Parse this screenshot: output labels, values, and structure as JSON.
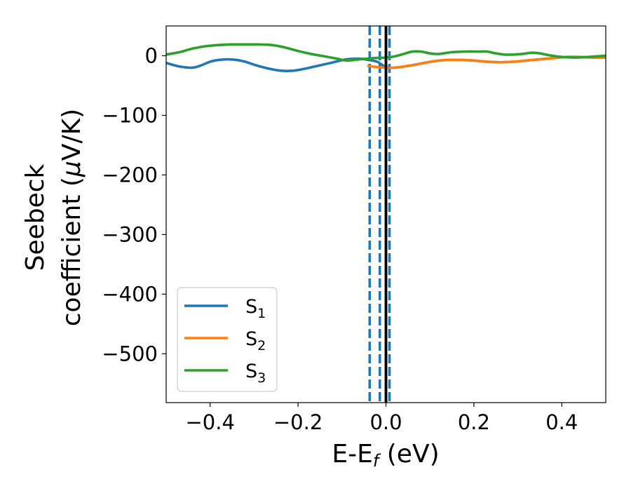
{
  "chart_data": {
    "type": "line",
    "title": "",
    "xlabel": {
      "main": "E-E",
      "sub": "f",
      "unit": " (eV)"
    },
    "ylabel": {
      "line1": "Seebeck",
      "line2": "coefficient  (",
      "mu": "μ",
      "unit": "V/K)"
    },
    "xlim": [
      -0.5,
      0.5
    ],
    "ylim": [
      -582,
      50
    ],
    "xticks": [
      -0.4,
      -0.2,
      0.0,
      0.2,
      0.4
    ],
    "xtick_labels": [
      "−0.4",
      "−0.2",
      "0.0",
      "0.2",
      "0.4"
    ],
    "yticks": [
      0,
      -100,
      -200,
      -300,
      -400,
      -500
    ],
    "ytick_labels": [
      "0",
      "−100",
      "−200",
      "−300",
      "−400",
      "−500"
    ],
    "grid": false,
    "legend_position": "lower-left",
    "series": [
      {
        "name": "S",
        "sub": "1",
        "color": "#1f77b4",
        "x": [
          -0.5,
          -0.47,
          -0.44,
          -0.42,
          -0.4,
          -0.38,
          -0.36,
          -0.34,
          -0.32,
          -0.3,
          -0.27,
          -0.24,
          -0.21,
          -0.18,
          -0.15,
          -0.12,
          -0.09,
          -0.06,
          -0.04,
          -0.02,
          0.0,
          0.02,
          0.05,
          0.08,
          0.11,
          0.14,
          0.17,
          0.2,
          0.23,
          0.26,
          0.29,
          0.32,
          0.35,
          0.38,
          0.41,
          0.44,
          0.47,
          0.5
        ],
        "y": [
          -12,
          -18,
          -20,
          -16,
          -10,
          -7,
          -6,
          -7,
          -10,
          -15,
          -21,
          -25,
          -25,
          -21,
          -16,
          -11,
          -6,
          -5,
          -7,
          -10,
          -19,
          -20,
          -17,
          -13,
          -9,
          -7,
          -7,
          -8,
          -10,
          -11,
          -10,
          -8,
          -6,
          -4,
          -2,
          -2,
          -3,
          -3
        ]
      },
      {
        "name": "S",
        "sub": "2",
        "color": "#ff7f0e",
        "x": [
          -0.04,
          -0.02,
          0.0,
          0.02,
          0.05,
          0.08,
          0.11,
          0.14,
          0.17,
          0.2,
          0.23,
          0.26,
          0.29,
          0.32,
          0.35,
          0.38,
          0.41,
          0.44,
          0.47,
          0.5
        ],
        "y": [
          -17,
          -19,
          -20,
          -20,
          -17,
          -13,
          -9,
          -7,
          -7,
          -8,
          -10,
          -11,
          -10,
          -8,
          -6,
          -4,
          -2,
          -2,
          -3,
          -3
        ]
      },
      {
        "name": "S",
        "sub": "3",
        "color": "#2ca02c",
        "x": [
          -0.5,
          -0.47,
          -0.44,
          -0.41,
          -0.38,
          -0.35,
          -0.32,
          -0.29,
          -0.26,
          -0.23,
          -0.2,
          -0.17,
          -0.14,
          -0.11,
          -0.09,
          -0.06,
          -0.03,
          0.0,
          0.02,
          0.04,
          0.06,
          0.08,
          0.1,
          0.12,
          0.15,
          0.18,
          0.21,
          0.23,
          0.25,
          0.27,
          0.29,
          0.31,
          0.33,
          0.35,
          0.37,
          0.4,
          0.43,
          0.46,
          0.5
        ],
        "y": [
          2,
          6,
          12,
          16,
          18,
          19,
          19,
          19,
          18,
          14,
          8,
          3,
          -1,
          -5,
          -8,
          -6,
          -4,
          -3,
          -1,
          3,
          7,
          7,
          4,
          3,
          6,
          7,
          7,
          7,
          4,
          2,
          2,
          3,
          5,
          4,
          1,
          -2,
          -3,
          -2,
          0
        ]
      }
    ],
    "vlines": [
      {
        "x": -0.037,
        "style": "dashed",
        "color": "#1f77b4"
      },
      {
        "x": -0.014,
        "style": "dashed",
        "color": "#1f77b4"
      },
      {
        "x": 0.008,
        "style": "dashed",
        "color": "#1f77b4"
      },
      {
        "x": 0.0,
        "style": "solid",
        "color": "#000000"
      }
    ]
  }
}
